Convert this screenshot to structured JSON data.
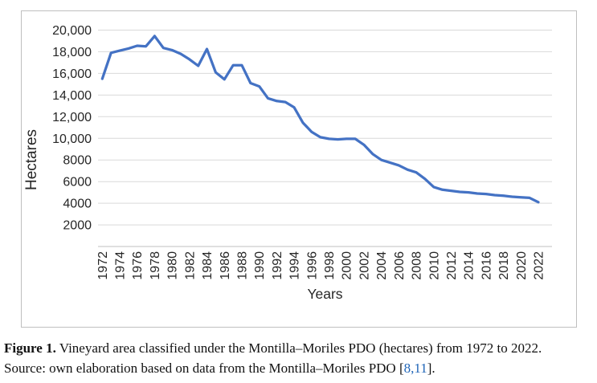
{
  "figure": {
    "caption_label": "Figure 1.",
    "caption_line1": "Vineyard area classified under the Montilla–Moriles PDO (hectares) from 1972 to 2022.",
    "caption_line2": "Source: own elaboration based on data from the Montilla–Moriles PDO",
    "citation_open": "[",
    "citation": "8,11",
    "citation_close": "]."
  },
  "chart_data": {
    "type": "line",
    "title": "",
    "xlabel": "Years",
    "ylabel": "Hectares",
    "series_name": "Vineyard area (hectares)",
    "x": [
      1972,
      1973,
      1974,
      1975,
      1976,
      1977,
      1978,
      1979,
      1980,
      1981,
      1982,
      1983,
      1984,
      1985,
      1986,
      1987,
      1988,
      1989,
      1990,
      1991,
      1992,
      1993,
      1994,
      1995,
      1996,
      1997,
      1998,
      1999,
      2000,
      2001,
      2002,
      2003,
      2004,
      2005,
      2006,
      2007,
      2008,
      2009,
      2010,
      2011,
      2012,
      2013,
      2014,
      2015,
      2016,
      2017,
      2018,
      2019,
      2020,
      2021,
      2022
    ],
    "values": [
      15500,
      17900,
      18100,
      18300,
      18550,
      18500,
      19450,
      18350,
      18150,
      17800,
      17300,
      16700,
      18250,
      16100,
      15450,
      16750,
      16750,
      15100,
      14800,
      13700,
      13450,
      13350,
      12850,
      11450,
      10600,
      10100,
      9950,
      9900,
      9950,
      9950,
      9400,
      8550,
      8000,
      7750,
      7500,
      7100,
      6850,
      6250,
      5500,
      5250,
      5150,
      5050,
      5000,
      4900,
      4850,
      4750,
      4700,
      4600,
      4550,
      4500,
      4100
    ],
    "ylim": [
      0,
      20000
    ],
    "yticks": [
      {
        "value": 2000,
        "label": "2000"
      },
      {
        "value": 4000,
        "label": "4000"
      },
      {
        "value": 6000,
        "label": "6000"
      },
      {
        "value": 8000,
        "label": "8000"
      },
      {
        "value": 10000,
        "label": "10,000"
      },
      {
        "value": 12000,
        "label": "12,000"
      },
      {
        "value": 14000,
        "label": "14,000"
      },
      {
        "value": 16000,
        "label": "16,000"
      },
      {
        "value": 18000,
        "label": "18,000"
      },
      {
        "value": 20000,
        "label": "20,000"
      }
    ],
    "xtick_labels": [
      "1972",
      "1974",
      "1976",
      "1978",
      "1980",
      "1982",
      "1984",
      "1986",
      "1988",
      "1990",
      "1992",
      "1994",
      "1996",
      "1998",
      "2000",
      "2002",
      "2004",
      "2006",
      "2008",
      "2010",
      "2012",
      "2014",
      "2016",
      "2018",
      "2020",
      "2022"
    ],
    "grid": true,
    "legend": false,
    "line_color": "#4472C4",
    "gridline_color": "#D9D9D9",
    "axis_line_color": "#BFBFBF",
    "text_color": "#262626",
    "border_color": "#BFBFBF",
    "citation_link_color": "#2166B8"
  }
}
